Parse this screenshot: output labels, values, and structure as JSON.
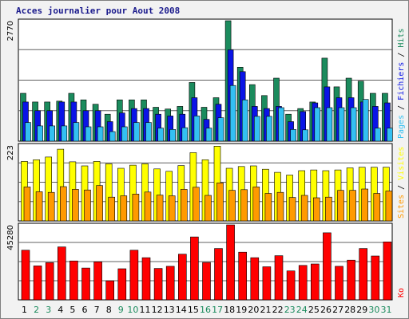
{
  "chart_data": [
    {
      "type": "bar",
      "title": "Acces journalier pour Aout 2008",
      "categories": [
        "1",
        "2",
        "3",
        "4",
        "5",
        "6",
        "7",
        "8",
        "9",
        "10",
        "11",
        "12",
        "13",
        "14",
        "15",
        "16",
        "17",
        "18",
        "19",
        "20",
        "21",
        "22",
        "23",
        "24",
        "25",
        "26",
        "27",
        "28",
        "29",
        "30",
        "31"
      ],
      "weekend_days": [
        "2",
        "3",
        "9",
        "10",
        "16",
        "17",
        "23",
        "24",
        "30",
        "31"
      ],
      "ymax_label": "2770",
      "ymax": 2770,
      "legend": {
        "pages": "Pages",
        "files": "Fichiers",
        "hits": "Hits"
      },
      "series": [
        {
          "name": "Hits",
          "color": "#1b8b5d",
          "values": [
            1100,
            900,
            900,
            920,
            1100,
            950,
            850,
            620,
            950,
            950,
            950,
            780,
            740,
            800,
            1350,
            780,
            1000,
            2770,
            1700,
            1300,
            1050,
            1450,
            620,
            750,
            900,
            1910,
            1250,
            1450,
            1380,
            1100,
            1100
          ]
        },
        {
          "name": "Fichiers",
          "color": "#0a14e6",
          "values": [
            900,
            700,
            700,
            900,
            900,
            700,
            700,
            450,
            650,
            750,
            750,
            620,
            580,
            620,
            1000,
            500,
            850,
            2100,
            1600,
            800,
            750,
            800,
            450,
            680,
            880,
            1250,
            1000,
            1000,
            900,
            800,
            880
          ]
        },
        {
          "name": "Pages",
          "color": "#33c0f2",
          "values": [
            430,
            350,
            350,
            350,
            430,
            330,
            330,
            220,
            330,
            430,
            430,
            300,
            270,
            310,
            580,
            300,
            540,
            1280,
            950,
            570,
            570,
            770,
            270,
            260,
            770,
            770,
            770,
            770,
            960,
            300,
            300
          ]
        }
      ]
    },
    {
      "type": "bar",
      "ymax_label": "223",
      "ymax": 223,
      "legend": {
        "sites": "Sites",
        "visites": "Visites"
      },
      "series": [
        {
          "name": "Visites",
          "color": "#ffff00",
          "values": [
            175,
            180,
            188,
            211,
            174,
            162,
            175,
            168,
            155,
            164,
            168,
            153,
            146,
            163,
            201,
            180,
            220,
            155,
            160,
            162,
            152,
            143,
            135,
            148,
            150,
            148,
            150,
            156,
            158,
            158,
            158
          ]
        },
        {
          "name": "Sites",
          "color": "#ff9a00",
          "values": [
            100,
            86,
            84,
            101,
            93,
            91,
            104,
            70,
            74,
            79,
            85,
            76,
            74,
            93,
            99,
            75,
            112,
            90,
            92,
            100,
            81,
            84,
            69,
            75,
            68,
            70,
            90,
            90,
            94,
            81,
            88
          ]
        }
      ]
    },
    {
      "type": "bar",
      "ymax_label": "45280",
      "ymax": 45280,
      "legend": {
        "ko": "Ko"
      },
      "series": [
        {
          "name": "Ko",
          "color": "#ff0000",
          "values": [
            30000,
            20500,
            22500,
            32000,
            23500,
            19200,
            23000,
            11500,
            18800,
            30000,
            25500,
            19000,
            20300,
            27600,
            38000,
            22600,
            31000,
            45280,
            28800,
            25500,
            20000,
            26700,
            17500,
            20800,
            21700,
            40500,
            20300,
            24000,
            31000,
            26500,
            35000
          ]
        }
      ]
    }
  ]
}
